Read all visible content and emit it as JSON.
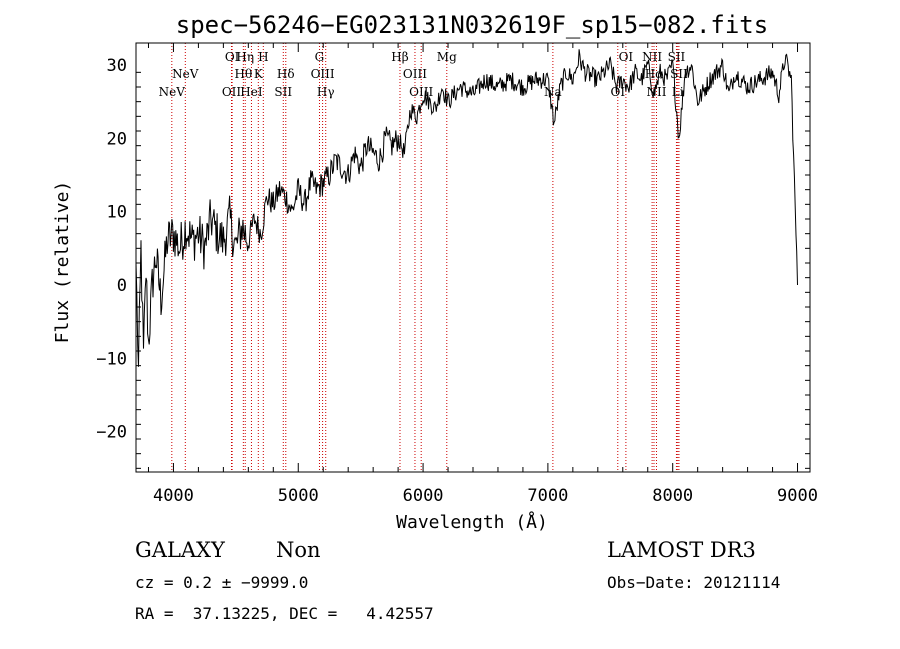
{
  "chart_data": {
    "type": "line",
    "title": "spec−56246−EG023131N032619F_sp15−082.fits",
    "xlabel": "Wavelength (Å)",
    "ylabel": "Flux (relative)",
    "xlim": [
      3700,
      9100
    ],
    "ylim": [
      -25.5,
      33
    ],
    "xticks": [
      4000,
      5000,
      6000,
      7000,
      8000,
      9000
    ],
    "yticks": [
      -20,
      -10,
      0,
      10,
      20,
      30
    ],
    "ytick_labels": [
      "−20",
      "−10",
      "0",
      "10",
      "20",
      "30"
    ],
    "series": [
      {
        "name": "spectrum",
        "x": [
          3700,
          3720,
          3740,
          3760,
          3780,
          3800,
          3830,
          3860,
          3900,
          3950,
          4000,
          4050,
          4100,
          4150,
          4200,
          4250,
          4300,
          4350,
          4400,
          4450,
          4500,
          4550,
          4600,
          4650,
          4700,
          4750,
          4800,
          4850,
          4900,
          4950,
          5000,
          5050,
          5100,
          5150,
          5200,
          5250,
          5300,
          5350,
          5400,
          5450,
          5500,
          5550,
          5600,
          5650,
          5700,
          5750,
          5800,
          5850,
          5900,
          5950,
          6000,
          6050,
          6100,
          6150,
          6200,
          6250,
          6300,
          6400,
          6500,
          6600,
          6700,
          6800,
          6900,
          7000,
          7050,
          7100,
          7150,
          7200,
          7250,
          7300,
          7400,
          7500,
          7550,
          7600,
          7650,
          7700,
          7750,
          7800,
          7850,
          7900,
          7950,
          8000,
          8050,
          8100,
          8150,
          8200,
          8300,
          8400,
          8450,
          8500,
          8600,
          8700,
          8800,
          8850,
          8900,
          8950,
          9000
        ],
        "y": [
          3,
          -12,
          5,
          -10,
          2,
          -8,
          0,
          4,
          -2,
          6,
          7,
          5,
          8,
          6,
          7,
          5,
          9,
          7,
          6,
          9,
          5,
          8,
          6,
          9,
          7,
          12,
          11,
          13,
          12,
          10,
          13,
          11,
          14,
          13,
          14,
          15,
          17,
          16,
          15,
          18,
          16,
          19,
          18,
          17,
          20,
          19,
          20,
          18,
          24,
          23,
          26,
          25,
          24,
          27,
          25,
          26,
          27,
          26,
          28,
          27,
          28,
          27,
          28,
          28,
          22,
          27,
          29,
          28,
          31,
          29,
          28,
          30,
          27,
          28,
          27,
          29,
          28,
          30,
          26,
          29,
          28,
          30,
          20,
          29,
          30,
          25,
          28,
          30,
          26,
          29,
          27,
          28,
          29,
          26,
          31,
          28,
          0
        ]
      }
    ],
    "lines": [
      {
        "name": "NeV",
        "wavelength": 3987,
        "row": 2
      },
      {
        "name": "NeV",
        "wavelength": 4095,
        "row": 1
      },
      {
        "name": "OII",
        "wavelength": 4465,
        "row": 2
      },
      {
        "name": "OI",
        "wavelength": 4470,
        "row": 0
      },
      {
        "name": "Hθ",
        "wavelength": 4560,
        "row": 1
      },
      {
        "name": "Hη",
        "wavelength": 4575,
        "row": 0
      },
      {
        "name": "HeI",
        "wavelength": 4625,
        "row": 2
      },
      {
        "name": "K",
        "wavelength": 4680,
        "row": 1
      },
      {
        "name": "H",
        "wavelength": 4720,
        "row": 0
      },
      {
        "name": "SII",
        "wavelength": 4880,
        "row": 2
      },
      {
        "name": "Hδ",
        "wavelength": 4900,
        "row": 1
      },
      {
        "name": "G",
        "wavelength": 5170,
        "row": 0
      },
      {
        "name": "OIII",
        "wavelength": 5195,
        "row": 1
      },
      {
        "name": "Hγ",
        "wavelength": 5220,
        "row": 2
      },
      {
        "name": "Hβ",
        "wavelength": 5815,
        "row": 0
      },
      {
        "name": "OIII",
        "wavelength": 5935,
        "row": 1
      },
      {
        "name": "OIII",
        "wavelength": 5985,
        "row": 2
      },
      {
        "name": "Mg",
        "wavelength": 6190,
        "row": 0
      },
      {
        "name": "Na",
        "wavelength": 7040,
        "row": 2
      },
      {
        "name": "OI",
        "wavelength": 7560,
        "row": 2
      },
      {
        "name": "OI",
        "wavelength": 7625,
        "row": 0
      },
      {
        "name": "NII",
        "wavelength": 7835,
        "row": 0
      },
      {
        "name": "Hα",
        "wavelength": 7850,
        "row": 1
      },
      {
        "name": "NII",
        "wavelength": 7870,
        "row": 2
      },
      {
        "name": "SII",
        "wavelength": 8030,
        "row": 0
      },
      {
        "name": "SII",
        "wavelength": 8050,
        "row": 1
      },
      {
        "name": "Li",
        "wavelength": 8040,
        "row": 2
      }
    ]
  },
  "info": {
    "class": "GALAXY",
    "subclass": "Non",
    "redshift": "cz = 0.2 ± −9999.0",
    "coords": "RA =  37.13225, DEC =   4.42557",
    "survey": "LAMOST DR3",
    "obs_date": "Obs−Date: 20121114"
  },
  "colors": {
    "line_marker": "#cc0000",
    "spectrum": "#000000",
    "axis": "#000000"
  }
}
